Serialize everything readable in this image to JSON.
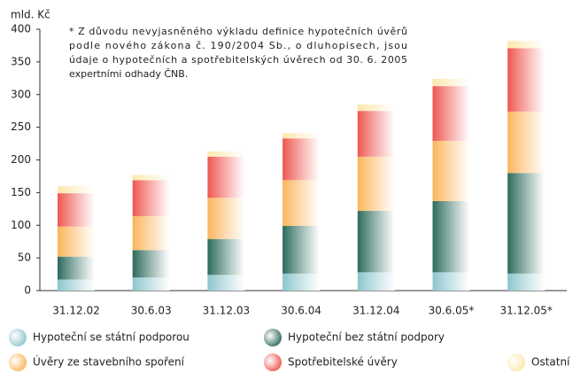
{
  "chart_data": {
    "type": "stacked_bar",
    "y_axis_label": "mld. Kč",
    "annotation": [
      "* Z důvodu nevyjasněného výkladu definice hypotečních úvěrů",
      "podle nového zákona č. 190/2004 Sb., o dluhopisech, jsou",
      "údaje o hypotečních a spotřebitelských úvěrech od 30. 6. 2005",
      "expertními odhady ČNB."
    ],
    "categories": [
      "31.12.02",
      "30.6.03",
      "31.12.03",
      "30.6.04",
      "31.12.04",
      "30.6.05*",
      "31.12.05*"
    ],
    "series": [
      {
        "name": "Hypoteční se státní podporou",
        "color": "#8cc6cd",
        "values": [
          17,
          20,
          24,
          26,
          28,
          28,
          26
        ]
      },
      {
        "name": "Hypoteční bez státní podpory",
        "color": "#2c6b5c",
        "values": [
          35,
          42,
          55,
          73,
          94,
          109,
          154
        ]
      },
      {
        "name": "Úvěry ze stavebního spoření",
        "color": "#fbb55c",
        "values": [
          46,
          52,
          63,
          70,
          83,
          92,
          94
        ]
      },
      {
        "name": "Spotřebitelské úvěry",
        "color": "#ef5650",
        "values": [
          51,
          55,
          63,
          64,
          70,
          84,
          97
        ]
      },
      {
        "name": "Ostatní",
        "color": "#fce8ad",
        "values": [
          11,
          8,
          8,
          8,
          10,
          11,
          11
        ]
      }
    ],
    "ylim": [
      0,
      400
    ],
    "yticks": [
      0,
      50,
      100,
      150,
      200,
      250,
      300,
      350,
      400
    ]
  }
}
